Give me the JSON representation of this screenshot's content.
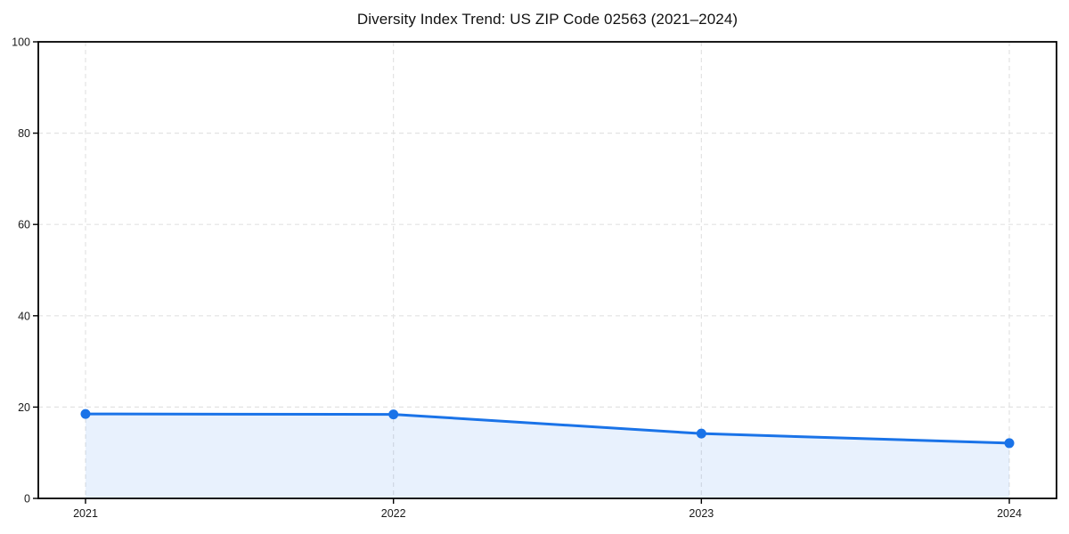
{
  "chart_data": {
    "type": "area",
    "title": "Diversity Index Trend: US ZIP Code 02563 (2021–2024)",
    "categories": [
      "2021",
      "2022",
      "2023",
      "2024"
    ],
    "values": [
      18.5,
      18.4,
      14.2,
      12.1
    ],
    "xlabel": "",
    "ylabel": "",
    "ylim": [
      0,
      100
    ],
    "yticks": [
      0,
      20,
      40,
      60,
      80,
      100
    ],
    "grid": "dashed-both-axes",
    "legend": "none",
    "colors": {
      "line": "#1a73e8",
      "fill": "#1a73e8",
      "fill_opacity": 0.1,
      "grid": "#e3e3e3",
      "axis": "#000000",
      "tick_label": "#1a1a1a",
      "title": "#111111",
      "background": "#ffffff"
    }
  }
}
